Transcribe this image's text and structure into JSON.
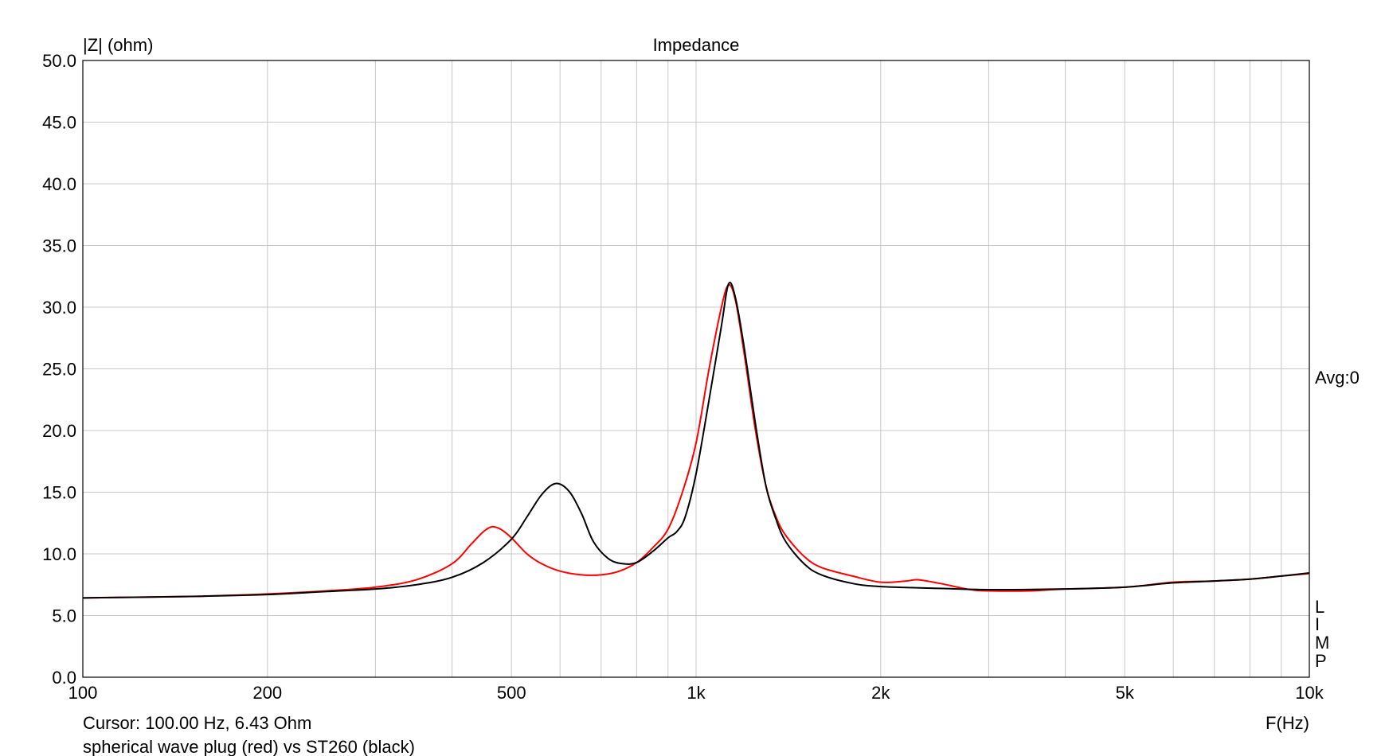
{
  "chart_data": {
    "type": "line",
    "title": "Impedance",
    "ylabel": "|Z| (ohm)",
    "xlabel": "F(Hz)",
    "x_scale": "log",
    "xlim": [
      100,
      10000
    ],
    "ylim": [
      0,
      50
    ],
    "grid": true,
    "y_ticks": [
      "0.0",
      "5.0",
      "10.0",
      "15.0",
      "20.0",
      "25.0",
      "30.0",
      "35.0",
      "40.0",
      "45.0",
      "50.0"
    ],
    "x_ticks": [
      {
        "value": 100,
        "label": "100"
      },
      {
        "value": 200,
        "label": "200"
      },
      {
        "value": 500,
        "label": "500"
      },
      {
        "value": 1000,
        "label": "1k"
      },
      {
        "value": 2000,
        "label": "2k"
      },
      {
        "value": 5000,
        "label": "5k"
      },
      {
        "value": 10000,
        "label": "10k"
      }
    ],
    "side_label": "Avg:0",
    "side_letters": [
      "L",
      "I",
      "M",
      "P"
    ],
    "cursor_text": "Cursor: 100.00 Hz, 6.43 Ohm",
    "caption": "spherical wave plug (red) vs ST260 (black)",
    "series": [
      {
        "color": "#ff0000",
        "points": [
          [
            100,
            6.43
          ],
          [
            150,
            6.55
          ],
          [
            200,
            6.75
          ],
          [
            250,
            7.0
          ],
          [
            300,
            7.3
          ],
          [
            350,
            7.9
          ],
          [
            400,
            9.2
          ],
          [
            430,
            10.8
          ],
          [
            450,
            11.8
          ],
          [
            465,
            12.2
          ],
          [
            480,
            12.0
          ],
          [
            500,
            11.3
          ],
          [
            530,
            10.0
          ],
          [
            560,
            9.2
          ],
          [
            600,
            8.6
          ],
          [
            650,
            8.3
          ],
          [
            700,
            8.3
          ],
          [
            750,
            8.6
          ],
          [
            800,
            9.3
          ],
          [
            850,
            10.5
          ],
          [
            900,
            12.0
          ],
          [
            950,
            15.0
          ],
          [
            1000,
            19.0
          ],
          [
            1050,
            25.0
          ],
          [
            1100,
            30.0
          ],
          [
            1130,
            31.8
          ],
          [
            1160,
            30.5
          ],
          [
            1200,
            26.0
          ],
          [
            1250,
            20.0
          ],
          [
            1300,
            15.5
          ],
          [
            1350,
            13.0
          ],
          [
            1400,
            11.5
          ],
          [
            1500,
            9.8
          ],
          [
            1600,
            8.9
          ],
          [
            1800,
            8.2
          ],
          [
            2000,
            7.7
          ],
          [
            2200,
            7.8
          ],
          [
            2300,
            7.9
          ],
          [
            2500,
            7.6
          ],
          [
            2800,
            7.1
          ],
          [
            3000,
            7.0
          ],
          [
            3500,
            7.0
          ],
          [
            4000,
            7.15
          ],
          [
            5000,
            7.3
          ],
          [
            6000,
            7.7
          ],
          [
            7000,
            7.8
          ],
          [
            8000,
            7.95
          ],
          [
            9000,
            8.2
          ],
          [
            10000,
            8.4
          ]
        ]
      },
      {
        "color": "#000000",
        "points": [
          [
            100,
            6.43
          ],
          [
            150,
            6.55
          ],
          [
            200,
            6.7
          ],
          [
            250,
            6.95
          ],
          [
            300,
            7.15
          ],
          [
            350,
            7.5
          ],
          [
            400,
            8.1
          ],
          [
            450,
            9.3
          ],
          [
            500,
            11.2
          ],
          [
            530,
            13.0
          ],
          [
            560,
            14.8
          ],
          [
            590,
            15.7
          ],
          [
            620,
            15.1
          ],
          [
            650,
            13.3
          ],
          [
            680,
            11.0
          ],
          [
            720,
            9.6
          ],
          [
            760,
            9.2
          ],
          [
            800,
            9.3
          ],
          [
            850,
            10.2
          ],
          [
            900,
            11.3
          ],
          [
            930,
            11.8
          ],
          [
            960,
            13.0
          ],
          [
            1000,
            16.5
          ],
          [
            1050,
            22.5
          ],
          [
            1100,
            28.5
          ],
          [
            1130,
            31.9
          ],
          [
            1160,
            30.7
          ],
          [
            1200,
            26.5
          ],
          [
            1250,
            20.5
          ],
          [
            1300,
            15.5
          ],
          [
            1350,
            12.8
          ],
          [
            1400,
            11.0
          ],
          [
            1500,
            9.2
          ],
          [
            1600,
            8.3
          ],
          [
            1800,
            7.6
          ],
          [
            2000,
            7.35
          ],
          [
            2500,
            7.2
          ],
          [
            3000,
            7.1
          ],
          [
            4000,
            7.15
          ],
          [
            5000,
            7.3
          ],
          [
            6000,
            7.65
          ],
          [
            7000,
            7.8
          ],
          [
            8000,
            7.95
          ],
          [
            9000,
            8.2
          ],
          [
            10000,
            8.45
          ]
        ]
      }
    ]
  }
}
